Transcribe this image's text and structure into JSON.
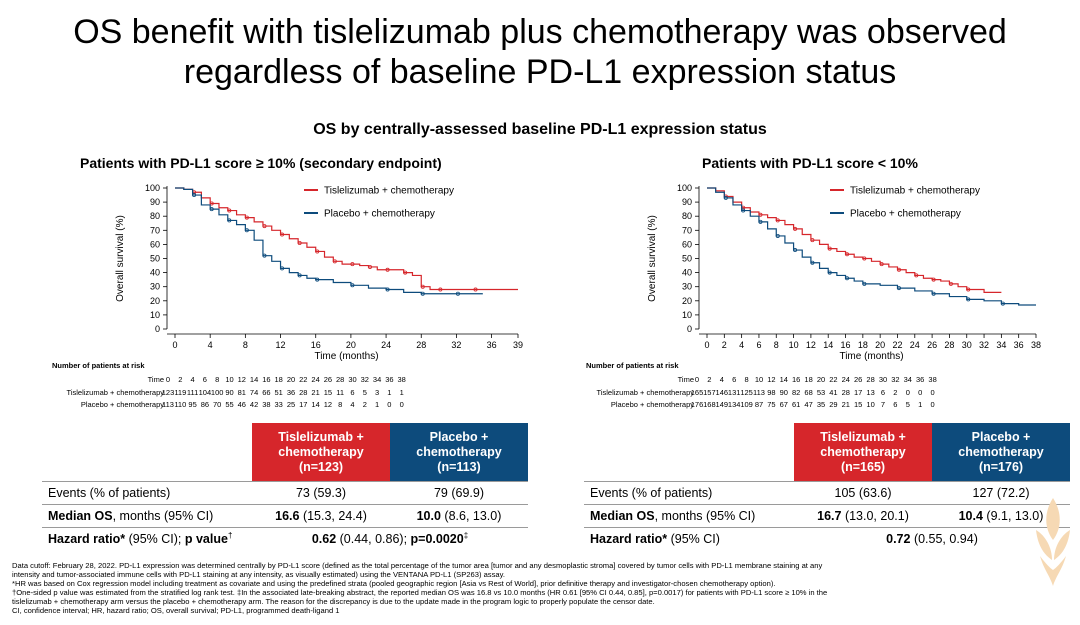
{
  "title_line1": "OS benefit with tislelizumab plus chemotherapy was observed",
  "title_line2": "regardless of baseline PD-L1 expression status",
  "subtitle": "OS by centrally-assessed baseline PD-L1 expression status",
  "colors": {
    "red": "#d6262b",
    "blue": "#0d4b7c",
    "logo": "#f6d9b4"
  },
  "chart_data": [
    {
      "type": "line",
      "title": "Patients with PD-L1 score ≥ 10% (secondary endpoint)",
      "xlabel": "Time (months)",
      "ylabel": "Overall survival (%)",
      "xlim": [
        0,
        39
      ],
      "ylim": [
        0,
        100
      ],
      "xticks": [
        0,
        4,
        8,
        12,
        16,
        20,
        24,
        28,
        32,
        36,
        39
      ],
      "yticks": [
        0,
        10,
        20,
        30,
        40,
        50,
        60,
        70,
        80,
        90,
        100
      ],
      "series": [
        {
          "name": "Tislelizumab + chemotherapy",
          "color": "#d6262b",
          "x": [
            0,
            1,
            2,
            3,
            4,
            5,
            6,
            7,
            8,
            9,
            10,
            11,
            12,
            13,
            14,
            15,
            16,
            17,
            18,
            19,
            20,
            21,
            22,
            23,
            24,
            25,
            26,
            27,
            28,
            29,
            30,
            32,
            34,
            36,
            39
          ],
          "y": [
            100,
            99,
            97,
            93,
            89,
            86,
            84,
            81,
            79,
            76,
            73,
            70,
            67,
            64,
            61,
            58,
            55,
            51,
            48,
            46,
            46,
            45,
            44,
            42,
            42,
            42,
            40,
            38,
            30,
            28,
            28,
            28,
            28,
            28,
            28
          ]
        },
        {
          "name": "Placebo + chemotherapy",
          "color": "#0d4b7c",
          "x": [
            0,
            1,
            2,
            3,
            4,
            5,
            6,
            7,
            8,
            9,
            10,
            11,
            12,
            13,
            14,
            15,
            16,
            18,
            20,
            22,
            24,
            26,
            28,
            30,
            32,
            35
          ],
          "y": [
            100,
            99,
            95,
            88,
            85,
            81,
            77,
            74,
            70,
            63,
            52,
            48,
            43,
            40,
            38,
            36,
            35,
            33,
            31,
            29,
            28,
            26,
            25,
            25,
            25,
            25
          ]
        }
      ]
    },
    {
      "type": "line",
      "title": "Patients with PD-L1 score < 10%",
      "xlabel": "Time (months)",
      "ylabel": "Overall survival (%)",
      "xlim": [
        0,
        38
      ],
      "ylim": [
        0,
        100
      ],
      "xticks": [
        0,
        2,
        4,
        6,
        8,
        10,
        12,
        14,
        16,
        18,
        20,
        22,
        24,
        26,
        28,
        30,
        32,
        34,
        36,
        38
      ],
      "yticks": [
        0,
        10,
        20,
        30,
        40,
        50,
        60,
        70,
        80,
        90,
        100
      ],
      "series": [
        {
          "name": "Tislelizumab + chemotherapy",
          "color": "#d6262b",
          "x": [
            0,
            1,
            2,
            3,
            4,
            5,
            6,
            7,
            8,
            9,
            10,
            11,
            12,
            13,
            14,
            15,
            16,
            17,
            18,
            19,
            20,
            21,
            22,
            23,
            24,
            25,
            26,
            27,
            28,
            29,
            30,
            32,
            34
          ],
          "y": [
            100,
            98,
            94,
            90,
            86,
            83,
            81,
            79,
            77,
            74,
            71,
            67,
            63,
            60,
            57,
            55,
            53,
            51,
            50,
            48,
            46,
            44,
            42,
            40,
            38,
            36,
            35,
            34,
            32,
            30,
            28,
            26,
            26
          ]
        },
        {
          "name": "Placebo + chemotherapy",
          "color": "#0d4b7c",
          "x": [
            0,
            1,
            2,
            3,
            4,
            5,
            6,
            7,
            8,
            9,
            10,
            11,
            12,
            13,
            14,
            15,
            16,
            17,
            18,
            20,
            22,
            24,
            26,
            28,
            30,
            32,
            34,
            36,
            38
          ],
          "y": [
            100,
            97,
            93,
            88,
            84,
            80,
            76,
            71,
            66,
            61,
            56,
            51,
            47,
            43,
            40,
            38,
            36,
            34,
            32,
            31,
            29,
            27,
            25,
            23,
            21,
            20,
            18,
            17,
            17
          ]
        }
      ]
    }
  ],
  "panels": [
    {
      "risk": {
        "title": "Number of patients at risk",
        "time_label": "Time",
        "times": [
          "0",
          "2",
          "4",
          "6",
          "8",
          "10",
          "12",
          "14",
          "16",
          "18",
          "20",
          "22",
          "24",
          "26",
          "28",
          "30",
          "32",
          "34",
          "36",
          "38"
        ],
        "tis_label": "Tislelizumab + chemotherapy",
        "tis": [
          "123",
          "119",
          "111",
          "104",
          "100",
          "90",
          "81",
          "74",
          "66",
          "51",
          "36",
          "28",
          "21",
          "15",
          "11",
          "6",
          "5",
          "3",
          "1",
          "1"
        ],
        "pbo_label": "Placebo + chemotherapy",
        "pbo": [
          "113",
          "110",
          "95",
          "86",
          "70",
          "55",
          "46",
          "42",
          "38",
          "33",
          "25",
          "17",
          "14",
          "12",
          "8",
          "4",
          "2",
          "1",
          "0",
          "0"
        ]
      },
      "table": {
        "tis_header": [
          "Tislelizumab +",
          "chemotherapy",
          "(n=123)"
        ],
        "pbo_header": [
          "Placebo +",
          "chemotherapy",
          "(n=113)"
        ],
        "events_label": "Events (% of patients)",
        "events_tis": "73 (59.3)",
        "events_pbo": "79 (69.9)",
        "median_label_bold": "Median OS",
        "median_label_rest": ", months (95% CI)",
        "median_tis_bold": "16.6",
        "median_tis_rest": " (15.3, 24.4)",
        "median_pbo_bold": "10.0",
        "median_pbo_rest": " (8.6, 13.0)",
        "hr_label_bold": "Hazard ratio*",
        "hr_label_rest": " (95% CI); ",
        "hr_label_bold2": "p value",
        "hr_label_sup": "†",
        "hr_value_bold": "0.62",
        "hr_value_rest": " (0.44, 0.86); ",
        "hr_value_bold2": "p=0.0020",
        "hr_value_sup": "‡"
      }
    },
    {
      "risk": {
        "title": "Number of patients at risk",
        "time_label": "Time",
        "times": [
          "0",
          "2",
          "4",
          "6",
          "8",
          "10",
          "12",
          "14",
          "16",
          "18",
          "20",
          "22",
          "24",
          "26",
          "28",
          "30",
          "32",
          "34",
          "36",
          "38"
        ],
        "tis_label": "Tislelizumab + chemotherapy",
        "tis": [
          "165",
          "157",
          "146",
          "131",
          "125",
          "113",
          "98",
          "90",
          "82",
          "68",
          "53",
          "41",
          "28",
          "17",
          "13",
          "6",
          "2",
          "0",
          "0",
          "0"
        ],
        "pbo_label": "Placebo + chemotherapy",
        "pbo": [
          "176",
          "168",
          "149",
          "134",
          "109",
          "87",
          "75",
          "67",
          "61",
          "47",
          "35",
          "29",
          "21",
          "15",
          "10",
          "7",
          "6",
          "5",
          "1",
          "0"
        ]
      },
      "table": {
        "tis_header": [
          "Tislelizumab +",
          "chemotherapy",
          "(n=165)"
        ],
        "pbo_header": [
          "Placebo +",
          "chemotherapy",
          "(n=176)"
        ],
        "events_label": "Events (% of patients)",
        "events_tis": "105 (63.6)",
        "events_pbo": "127 (72.2)",
        "median_label_bold": "Median OS",
        "median_label_rest": ", months (95% CI)",
        "median_tis_bold": "16.7",
        "median_tis_rest": " (13.0, 20.1)",
        "median_pbo_bold": "10.4",
        "median_pbo_rest": " (9.1, 13.0)",
        "hr_label_bold": "Hazard ratio*",
        "hr_label_rest": " (95% CI)",
        "hr_value_bold": "0.72",
        "hr_value_rest": " (0.55, 0.94)"
      }
    }
  ],
  "footnotes": [
    "Data cutoff: February 28, 2022. PD-L1 expression was determined centrally by PD-L1 score (defined as the total percentage of the tumor area [tumor and any desmoplastic stroma] covered by tumor cells with PD-L1 membrane staining at any",
    "intensity and tumor-associated immune cells with PD-L1 staining at any intensity, as visually estimated) using the VENTANA PD-L1 (SP263) assay.",
    "*HR was based on Cox regression model including treatment as covariate and using the predefined strata (pooled geographic region [Asia vs Rest of World], prior definitive therapy and investigator-chosen chemotherapy option).",
    "†One-sided p value was estimated from the stratified log rank test. ‡In the associated late-breaking abstract, the reported median OS was 16.8 vs 10.0 months (HR 0.61 [95% CI 0.44, 0.85], p=0.0017) for patients with PD-L1 score ≥ 10% in the",
    "tislelizumab + chemotherapy arm versus the placebo + chemotherapy arm. The reason for the discrepancy is due to the update made in the program logic to properly populate the censor date.",
    "CI, confidence interval; HR, hazard ratio; OS, overall survival; PD-L1, programmed death-ligand 1"
  ]
}
